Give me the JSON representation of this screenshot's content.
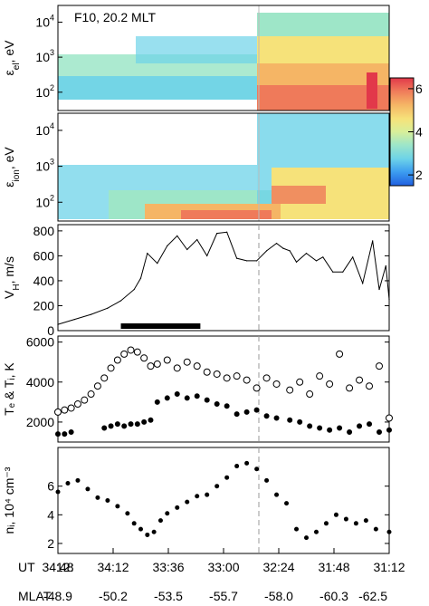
{
  "colors": {
    "colormap": [
      "#1f5fe0",
      "#3d9ef0",
      "#6dd3e8",
      "#9ee6c8",
      "#d8ef9a",
      "#f6e27a",
      "#f5b565",
      "#ef7a5a",
      "#e2384a"
    ],
    "dashed_line": "#9a9a9a",
    "bar": "#000000"
  },
  "chart_data": [
    {
      "type": "heatmap",
      "annotation": "F10, 20.2 MLT",
      "ylabel_main": "ε",
      "ylabel_sub": "el",
      "ylabel_unit": ", eV",
      "scale": "log",
      "yticks": [
        {
          "base": "10",
          "exp": "2",
          "value": 100
        },
        {
          "base": "10",
          "exp": "3",
          "value": 1000
        },
        {
          "base": "10",
          "exp": "4",
          "value": 10000
        }
      ],
      "ylim": [
        30,
        30000
      ],
      "colorbar": {
        "ticks": [
          "2",
          "4",
          "6"
        ],
        "range": [
          1.5,
          6.5
        ]
      }
    },
    {
      "type": "heatmap",
      "ylabel_main": "ε",
      "ylabel_sub": "ion",
      "ylabel_unit": ", eV",
      "scale": "log",
      "yticks": [
        {
          "base": "10",
          "exp": "2",
          "value": 100
        },
        {
          "base": "10",
          "exp": "3",
          "value": 1000
        },
        {
          "base": "10",
          "exp": "4",
          "value": 10000
        }
      ],
      "ylim": [
        30,
        30000
      ]
    },
    {
      "type": "line",
      "ylabel_main": "V",
      "ylabel_sub": "H",
      "ylabel_unit": ", m/s",
      "yticks": [
        0,
        200,
        400,
        600,
        800
      ],
      "ylim": [
        0,
        850
      ],
      "bar_span": [
        0.19,
        0.43
      ],
      "series": [
        {
          "x": [
            0.0,
            0.05,
            0.1,
            0.15,
            0.19,
            0.23,
            0.25,
            0.27,
            0.3,
            0.33,
            0.36,
            0.39,
            0.42,
            0.45,
            0.48,
            0.51,
            0.54,
            0.57,
            0.6,
            0.63,
            0.66,
            0.68,
            0.7,
            0.72,
            0.75,
            0.78,
            0.8,
            0.83,
            0.86,
            0.89,
            0.92,
            0.95,
            0.97,
            0.99,
            1.0
          ],
          "values": [
            50,
            90,
            130,
            180,
            240,
            330,
            420,
            620,
            540,
            680,
            760,
            650,
            730,
            600,
            780,
            790,
            580,
            560,
            560,
            640,
            700,
            660,
            640,
            550,
            620,
            560,
            590,
            470,
            470,
            590,
            380,
            720,
            330,
            520,
            250
          ]
        }
      ]
    },
    {
      "type": "scatter",
      "ylabel": "Tₑ & Tᵢ, K",
      "yticks": [
        2000,
        4000,
        6000
      ],
      "ylim": [
        1000,
        6300
      ],
      "series": [
        {
          "name": "open",
          "x": [
            0.0,
            0.02,
            0.04,
            0.06,
            0.08,
            0.1,
            0.12,
            0.14,
            0.16,
            0.18,
            0.2,
            0.22,
            0.24,
            0.26,
            0.28,
            0.3,
            0.33,
            0.36,
            0.39,
            0.42,
            0.45,
            0.48,
            0.51,
            0.54,
            0.57,
            0.6,
            0.63,
            0.66,
            0.7,
            0.73,
            0.76,
            0.79,
            0.82,
            0.85,
            0.88,
            0.91,
            0.94,
            0.97,
            1.0
          ],
          "values": [
            2500,
            2600,
            2700,
            2900,
            3100,
            3400,
            3800,
            4200,
            4700,
            5100,
            5400,
            5600,
            5500,
            5200,
            4800,
            4900,
            5100,
            4700,
            5000,
            4800,
            4500,
            4400,
            4200,
            4300,
            4100,
            3700,
            4200,
            3900,
            3600,
            4000,
            3400,
            4300,
            3900,
            5400,
            3700,
            4100,
            3800,
            4800,
            2200
          ]
        },
        {
          "name": "filled",
          "x": [
            0.0,
            0.02,
            0.04,
            0.14,
            0.16,
            0.18,
            0.2,
            0.22,
            0.24,
            0.26,
            0.28,
            0.3,
            0.33,
            0.36,
            0.39,
            0.42,
            0.45,
            0.48,
            0.51,
            0.54,
            0.57,
            0.6,
            0.63,
            0.66,
            0.7,
            0.73,
            0.76,
            0.79,
            0.82,
            0.85,
            0.88,
            0.91,
            0.94,
            0.97,
            1.0
          ],
          "values": [
            1400,
            1400,
            1500,
            1700,
            1800,
            1900,
            1800,
            1900,
            1900,
            2000,
            2100,
            3000,
            3200,
            3400,
            3200,
            3300,
            3100,
            2900,
            2800,
            2400,
            2500,
            2600,
            2300,
            2200,
            2100,
            2000,
            1800,
            1700,
            1600,
            1700,
            1500,
            1800,
            1900,
            1500,
            1600
          ]
        }
      ]
    },
    {
      "type": "scatter",
      "ylabel": "nᵢ, 10⁴ cm⁻³",
      "yticks": [
        2,
        4,
        6
      ],
      "ylim": [
        1.3,
        8.7
      ],
      "series": [
        {
          "x": [
            0.0,
            0.03,
            0.06,
            0.09,
            0.12,
            0.15,
            0.18,
            0.21,
            0.23,
            0.25,
            0.27,
            0.29,
            0.31,
            0.33,
            0.36,
            0.39,
            0.42,
            0.45,
            0.48,
            0.51,
            0.54,
            0.57,
            0.6,
            0.63,
            0.66,
            0.69,
            0.72,
            0.75,
            0.78,
            0.81,
            0.84,
            0.87,
            0.9,
            0.93,
            0.96,
            1.0
          ],
          "values": [
            5.6,
            6.2,
            6.4,
            5.8,
            5.2,
            5.0,
            4.6,
            4.1,
            3.4,
            3.0,
            2.6,
            2.8,
            3.6,
            4.1,
            4.5,
            4.9,
            5.3,
            5.4,
            6.0,
            6.6,
            7.4,
            7.6,
            7.2,
            6.4,
            5.4,
            4.8,
            3.0,
            2.4,
            2.8,
            3.4,
            4.0,
            3.7,
            3.4,
            3.6,
            3.0,
            2.8
          ]
        }
      ]
    }
  ],
  "bottom_axis": {
    "ut_label": "UT",
    "ut_prefix": "12:",
    "ut_ticks": [
      "34:48",
      "34:12",
      "33:36",
      "33:00",
      "32:24",
      "31:48",
      "31:12"
    ],
    "mlat_label": "MLAT",
    "mlat_ticks": [
      "-48.9",
      "-50.2",
      "-53.5",
      "-55.7",
      "-58.0",
      "-60.3",
      "-62.5"
    ]
  }
}
